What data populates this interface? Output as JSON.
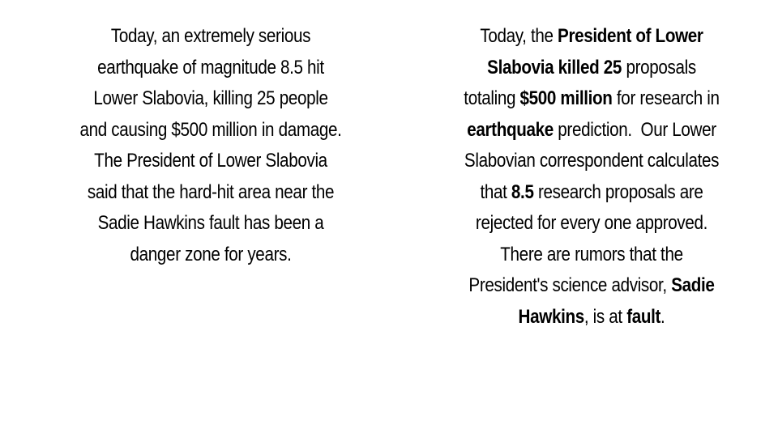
{
  "left": {
    "lines": [
      "Today, an extremely serious",
      "earthquake of magnitude 8.5 hit",
      "Lower Slabovia, killing 25 people",
      "and causing $500 million in damage.",
      "The President of Lower Slabovia",
      "said that the hard-hit area near the",
      "Sadie Hawkins fault has been a",
      "danger zone for years."
    ]
  },
  "right": {
    "lines": [
      [
        {
          "text": "Today, the ",
          "bold": false
        },
        {
          "text": "President of Lower",
          "bold": true
        }
      ],
      [
        {
          "text": "Slabovia killed 25",
          "bold": true
        },
        {
          "text": " proposals",
          "bold": false
        }
      ],
      [
        {
          "text": "totaling ",
          "bold": false
        },
        {
          "text": "$500 million",
          "bold": true
        },
        {
          "text": " for research in",
          "bold": false
        }
      ],
      [
        {
          "text": "earthquake",
          "bold": true
        },
        {
          "text": " prediction.  Our Lower",
          "bold": false
        }
      ],
      [
        {
          "text": "Slabovian correspondent calculates",
          "bold": false
        }
      ],
      [
        {
          "text": "that ",
          "bold": false
        },
        {
          "text": "8.5",
          "bold": true
        },
        {
          "text": " research proposals are",
          "bold": false
        }
      ],
      [
        {
          "text": "rejected for every one approved.",
          "bold": false
        }
      ],
      [
        {
          "text": "There are rumors that the",
          "bold": false
        }
      ],
      [
        {
          "text": "President's science advisor, ",
          "bold": false
        },
        {
          "text": "Sadie",
          "bold": true
        }
      ],
      [
        {
          "text": "Hawkins",
          "bold": true
        },
        {
          "text": ", is at ",
          "bold": false
        },
        {
          "text": "fault",
          "bold": true
        },
        {
          "text": ".",
          "bold": false
        }
      ]
    ]
  }
}
